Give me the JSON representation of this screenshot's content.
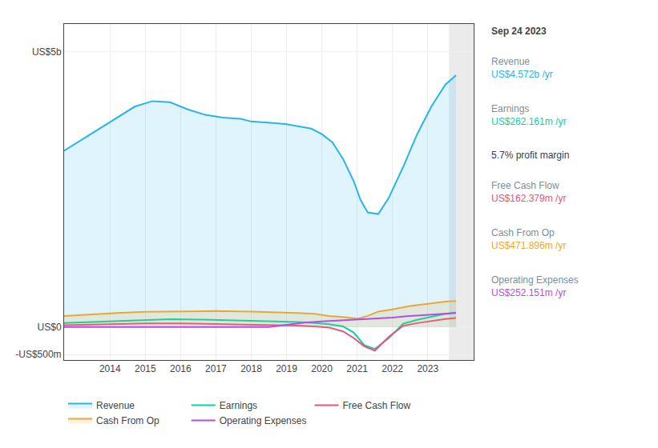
{
  "chart_data": {
    "type": "line",
    "xlim": [
      2012.7,
      2024.3
    ],
    "ylim": [
      -600,
      5500
    ],
    "xticks": [
      2014,
      2015,
      2016,
      2017,
      2018,
      2019,
      2020,
      2021,
      2022,
      2023
    ],
    "yticks": [
      {
        "value": -500,
        "label": "-US$500m"
      },
      {
        "value": 0,
        "label": "US$0"
      },
      {
        "value": 5000,
        "label": "US$5b"
      }
    ],
    "grid": true,
    "legend": "bottom",
    "shade_start": 2023.6,
    "series": [
      {
        "name": "Revenue",
        "color": "#29b5e8",
        "type": "area",
        "x": [
          2012.7,
          2013.2,
          2013.7,
          2014.2,
          2014.7,
          2015.2,
          2015.7,
          2016.2,
          2016.7,
          2017.2,
          2017.7,
          2018.0,
          2018.3,
          2018.7,
          2019.0,
          2019.3,
          2019.7,
          2020.0,
          2020.3,
          2020.6,
          2020.9,
          2021.1,
          2021.3,
          2021.6,
          2021.9,
          2022.3,
          2022.7,
          2023.1,
          2023.5,
          2023.8
        ],
        "values": [
          3200,
          3400,
          3600,
          3800,
          4000,
          4100,
          4080,
          3950,
          3850,
          3800,
          3780,
          3730,
          3720,
          3700,
          3680,
          3650,
          3600,
          3500,
          3350,
          3050,
          2650,
          2300,
          2080,
          2050,
          2350,
          2900,
          3500,
          4000,
          4400,
          4572
        ]
      },
      {
        "name": "Earnings",
        "color": "#00d4aa",
        "type": "line",
        "x": [
          2012.7,
          2013.5,
          2014.2,
          2015.0,
          2015.7,
          2016.5,
          2017.2,
          2018.0,
          2018.7,
          2019.3,
          2019.8,
          2020.2,
          2020.6,
          2020.9,
          2021.2,
          2021.5,
          2021.9,
          2022.3,
          2022.7,
          2023.1,
          2023.5,
          2023.8
        ],
        "values": [
          70,
          90,
          110,
          130,
          140,
          135,
          125,
          115,
          105,
          90,
          70,
          50,
          10,
          -100,
          -330,
          -400,
          -200,
          60,
          130,
          190,
          240,
          262
        ]
      },
      {
        "name": "Free Cash Flow",
        "color": "#e8547a",
        "type": "line",
        "x": [
          2012.7,
          2013.5,
          2014.2,
          2015.0,
          2016.0,
          2017.0,
          2018.0,
          2018.7,
          2019.3,
          2019.8,
          2020.2,
          2020.6,
          2020.9,
          2021.2,
          2021.5,
          2021.9,
          2022.3,
          2022.7,
          2023.1,
          2023.5,
          2023.8
        ],
        "values": [
          30,
          40,
          55,
          65,
          65,
          55,
          45,
          35,
          25,
          10,
          -10,
          -80,
          -200,
          -350,
          -430,
          -180,
          20,
          70,
          110,
          145,
          162
        ]
      },
      {
        "name": "Cash From Op",
        "color": "#e8a838",
        "type": "area",
        "x": [
          2012.7,
          2013.5,
          2014.2,
          2015.0,
          2016.0,
          2017.0,
          2018.0,
          2018.7,
          2019.3,
          2019.8,
          2020.2,
          2020.6,
          2021.0,
          2021.3,
          2021.6,
          2022.0,
          2022.5,
          2023.0,
          2023.5,
          2023.8
        ],
        "values": [
          200,
          230,
          255,
          275,
          285,
          290,
          280,
          270,
          255,
          240,
          200,
          180,
          150,
          200,
          280,
          320,
          380,
          420,
          460,
          472
        ]
      },
      {
        "name": "Operating Expenses",
        "color": "#b44de8",
        "type": "line",
        "x": [
          2012.7,
          2013.5,
          2014.2,
          2015.0,
          2016.0,
          2017.0,
          2018.0,
          2018.5,
          2019.0,
          2019.5,
          2020.0,
          2020.5,
          2021.0,
          2021.5,
          2022.0,
          2022.5,
          2023.0,
          2023.5,
          2023.8
        ],
        "values": [
          0,
          0,
          0,
          0,
          0,
          0,
          0,
          0,
          40,
          80,
          100,
          115,
          130,
          150,
          170,
          200,
          220,
          240,
          252
        ]
      }
    ],
    "annotations": [
      {
        "text": "Sep 24 2023"
      },
      {
        "label": "Revenue",
        "text": "US$4.572b /yr",
        "color": "#29b5e8"
      },
      {
        "label": "Earnings",
        "text": "US$262.161m /yr",
        "color": "#00d4aa"
      },
      {
        "text": "5.7% profit margin"
      },
      {
        "label": "Free Cash Flow",
        "text": "US$162.379m /yr",
        "color": "#e8547a"
      },
      {
        "label": "Cash From Op",
        "text": "US$471.896m /yr",
        "color": "#e8a838"
      },
      {
        "label": "Operating Expenses",
        "text": "US$252.151m /yr",
        "color": "#b44de8"
      }
    ]
  }
}
